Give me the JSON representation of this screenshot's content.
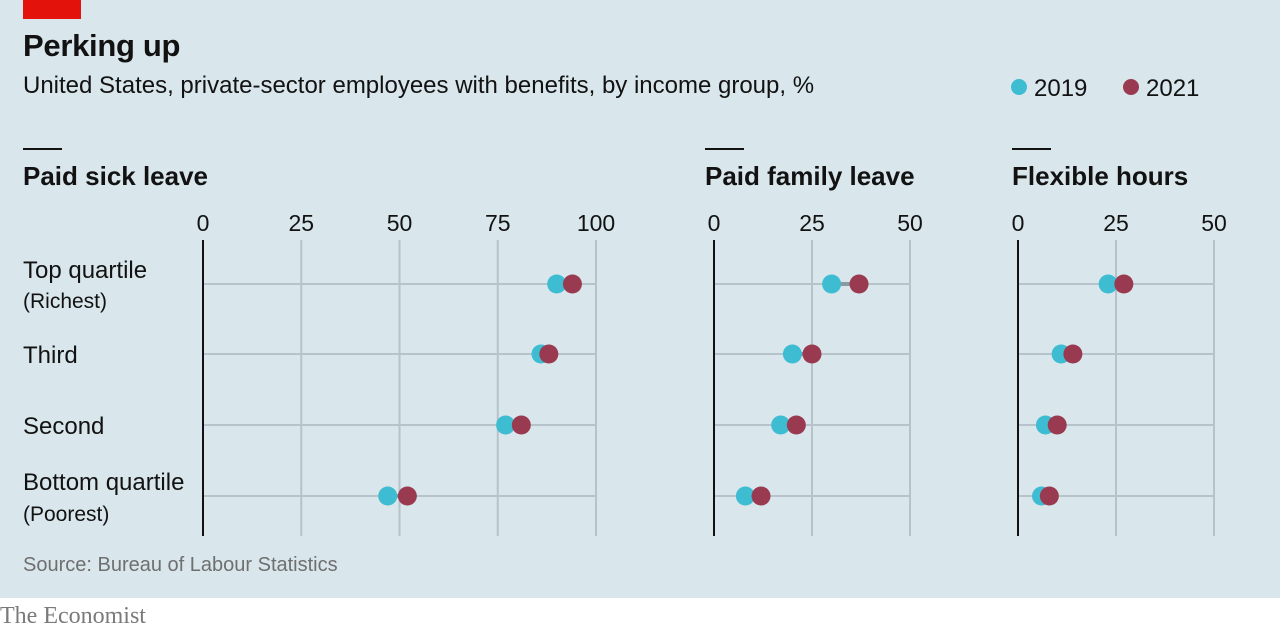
{
  "header": {
    "title": "Perking up",
    "subtitle": "United States, private-sector employees with benefits, by income group, %"
  },
  "source": "Source: Bureau of Labour Statistics",
  "brand": "The Economist",
  "colors": {
    "2019": "#3ebcd2",
    "2021": "#9a3a50",
    "connector": "#8a9aa3",
    "grid": "#b6c3ca",
    "axis": "#121212",
    "tag": "#e3120b"
  },
  "chart_data": {
    "type": "dot-plot",
    "legend": {
      "position": "top-right",
      "items": [
        {
          "label": "2019",
          "color": "#3ebcd2"
        },
        {
          "label": "2021",
          "color": "#9a3a50"
        }
      ]
    },
    "categories": [
      {
        "label": "Top quartile",
        "sub": "(Richest)"
      },
      {
        "label": "Third",
        "sub": ""
      },
      {
        "label": "Second",
        "sub": ""
      },
      {
        "label": "Bottom quartile",
        "sub": "(Poorest)"
      }
    ],
    "panels": [
      {
        "title": "Paid sick leave",
        "xlim": [
          0,
          100
        ],
        "ticks": [
          "0",
          "25",
          "50",
          "75",
          "100"
        ],
        "series": [
          {
            "name": "2019",
            "values": [
              90,
              86,
              77,
              47
            ]
          },
          {
            "name": "2021",
            "values": [
              94,
              88,
              81,
              52
            ]
          }
        ]
      },
      {
        "title": "Paid family leave",
        "xlim": [
          0,
          50
        ],
        "ticks": [
          "0",
          "25",
          "50"
        ],
        "series": [
          {
            "name": "2019",
            "values": [
              30,
              20,
              17,
              8
            ]
          },
          {
            "name": "2021",
            "values": [
              37,
              25,
              21,
              12
            ]
          }
        ]
      },
      {
        "title": "Flexible hours",
        "xlim": [
          0,
          50
        ],
        "ticks": [
          "0",
          "25",
          "50"
        ],
        "series": [
          {
            "name": "2019",
            "values": [
              23,
              11,
              7,
              6
            ]
          },
          {
            "name": "2021",
            "values": [
              27,
              14,
              10,
              8
            ]
          }
        ]
      }
    ]
  }
}
